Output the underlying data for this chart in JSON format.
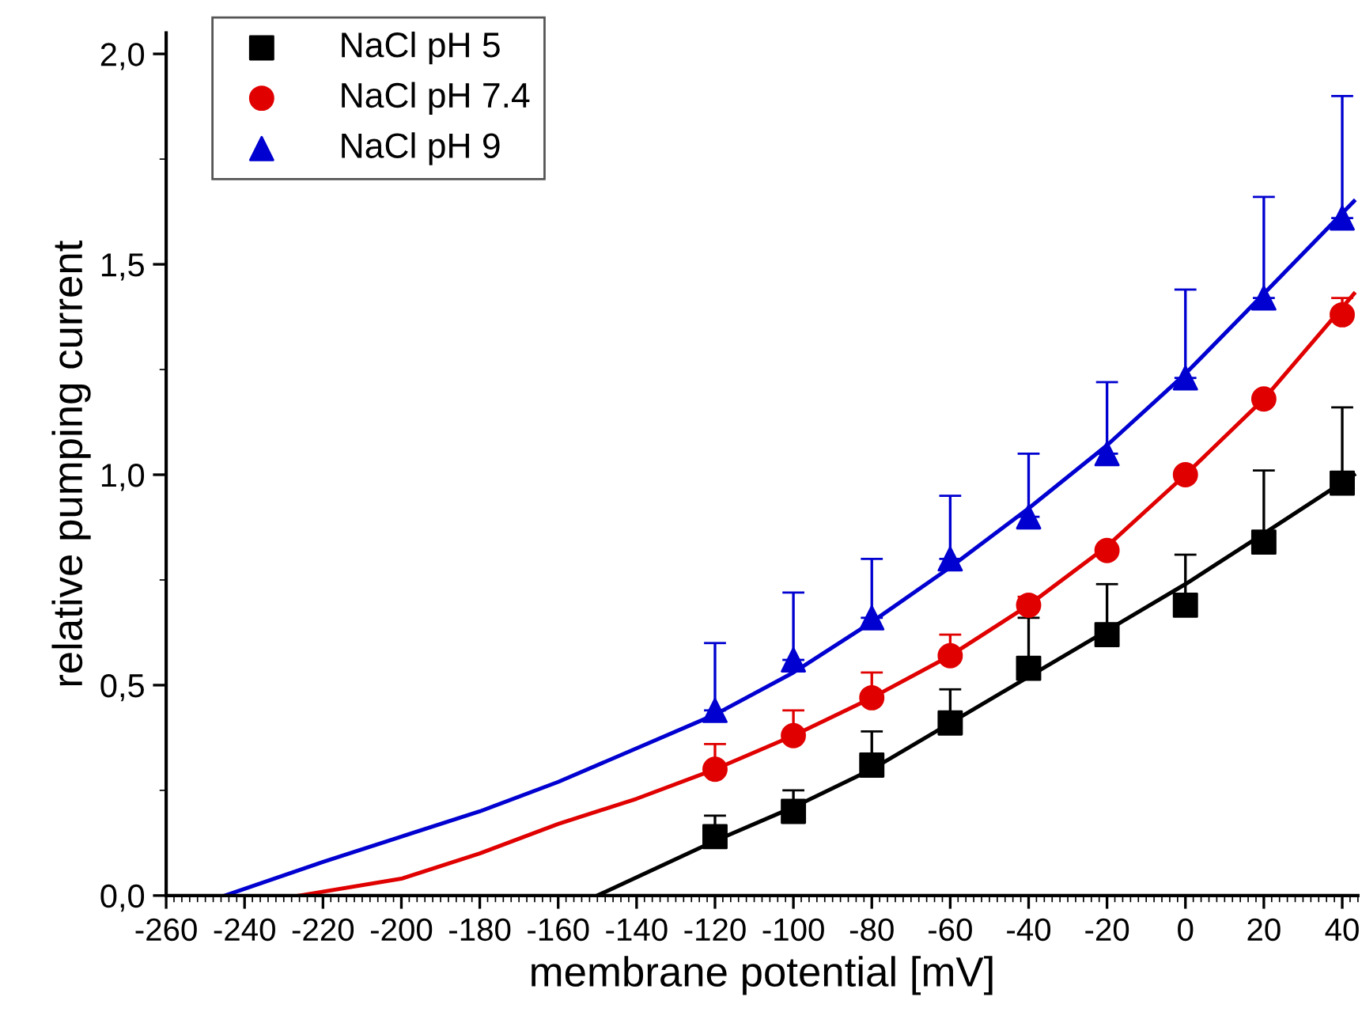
{
  "chart_data": {
    "type": "scatter",
    "xlabel": "membrane potential [mV]",
    "ylabel": "relative pumping current",
    "xlim": [
      -260,
      44
    ],
    "ylim": [
      0,
      2.05
    ],
    "xticks": [
      -260,
      -240,
      -220,
      -200,
      -180,
      -160,
      -140,
      -120,
      -100,
      -80,
      -60,
      -40,
      -20,
      0,
      20,
      40
    ],
    "yticks": [
      {
        "value": 0,
        "label": "0,0"
      },
      {
        "value": 0.5,
        "label": "0,5"
      },
      {
        "value": 1.0,
        "label": "1,0"
      },
      {
        "value": 1.5,
        "label": "1,5"
      },
      {
        "value": 2.0,
        "label": "2,0"
      }
    ],
    "grid": false,
    "legend": "top left",
    "series": [
      {
        "type": "line",
        "color": "#000000",
        "marker": "none",
        "x": [
          -150,
          -120,
          -100,
          -80,
          -60,
          -40,
          -20,
          0,
          20,
          43
        ],
        "values": [
          0,
          0.13,
          0.21,
          0.3,
          0.41,
          0.52,
          0.63,
          0.74,
          0.86,
          1.0
        ]
      },
      {
        "type": "line",
        "color": "#e00000",
        "marker": "none",
        "x": [
          -226,
          -200,
          -180,
          -160,
          -140,
          -120,
          -100,
          -80,
          -60,
          -40,
          -20,
          0,
          20,
          43
        ],
        "values": [
          0,
          0.04,
          0.1,
          0.17,
          0.23,
          0.3,
          0.38,
          0.47,
          0.57,
          0.69,
          0.83,
          1.0,
          1.18,
          1.43
        ]
      },
      {
        "type": "line",
        "color": "#0000d0",
        "marker": "none",
        "x": [
          -245,
          -220,
          -200,
          -180,
          -160,
          -140,
          -120,
          -100,
          -80,
          -60,
          -40,
          -20,
          0,
          20,
          43
        ],
        "values": [
          0,
          0.08,
          0.14,
          0.2,
          0.27,
          0.35,
          0.43,
          0.53,
          0.65,
          0.78,
          0.92,
          1.07,
          1.24,
          1.43,
          1.65
        ]
      },
      {
        "name": "NaCl pH 5",
        "type": "scatter",
        "marker": "square",
        "color": "#000000",
        "x": [
          -120,
          -100,
          -80,
          -60,
          -40,
          -20,
          0,
          20,
          40
        ],
        "values": [
          0.14,
          0.2,
          0.31,
          0.41,
          0.54,
          0.62,
          0.69,
          0.84,
          0.98
        ],
        "errors": [
          [
            0.14,
            0.19
          ],
          [
            0.2,
            0.25
          ],
          [
            0.31,
            0.39
          ],
          [
            0.41,
            0.49
          ],
          [
            0.54,
            0.66
          ],
          [
            0.62,
            0.74
          ],
          [
            0.69,
            0.81
          ],
          [
            0.84,
            1.01
          ],
          [
            0.98,
            1.16
          ]
        ]
      },
      {
        "name": "NaCl pH 7.4",
        "type": "scatter",
        "marker": "circle",
        "color": "#e00000",
        "x": [
          -120,
          -100,
          -80,
          -60,
          -40,
          -20,
          0,
          20,
          40
        ],
        "values": [
          0.3,
          0.38,
          0.47,
          0.57,
          0.69,
          0.82,
          1.0,
          1.18,
          1.38
        ],
        "errors": [
          [
            0.3,
            0.36
          ],
          [
            0.38,
            0.44
          ],
          [
            0.47,
            0.53
          ],
          [
            0.57,
            0.62
          ],
          [
            0.69,
            0.71
          ],
          null,
          null,
          null,
          [
            1.38,
            1.42
          ]
        ]
      },
      {
        "name": "NaCl pH 9",
        "type": "scatter",
        "marker": "triangle",
        "color": "#0000d0",
        "x": [
          -120,
          -100,
          -80,
          -60,
          -40,
          -20,
          0,
          20,
          40
        ],
        "values": [
          0.44,
          0.56,
          0.66,
          0.8,
          0.9,
          1.05,
          1.23,
          1.42,
          1.61
        ],
        "errors": [
          [
            0.44,
            0.6
          ],
          [
            0.56,
            0.72
          ],
          [
            0.66,
            0.8
          ],
          [
            0.8,
            0.95
          ],
          [
            0.9,
            1.05
          ],
          [
            1.05,
            1.22
          ],
          [
            1.23,
            1.44
          ],
          [
            1.42,
            1.66
          ],
          [
            1.61,
            1.9
          ]
        ]
      }
    ]
  }
}
